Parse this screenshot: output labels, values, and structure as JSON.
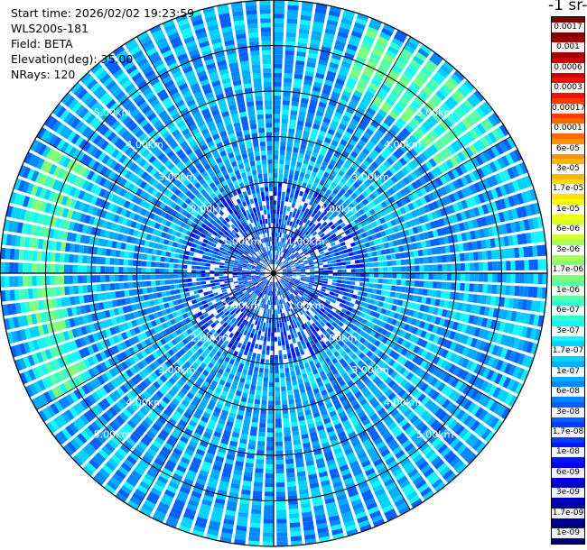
{
  "info": {
    "start_time": "Start time: 2026/02/02 19:23:59",
    "instrument": "WLS200s-181",
    "field": "Field: BETA",
    "elevation": "Elevation(deg): 35.00",
    "nrays": "NRays: 120"
  },
  "colorbar": {
    "title_fragment": "-1 sr-",
    "labels": [
      "0.0017",
      "0.001",
      "0.0006",
      "0.0003",
      "0.00017",
      "0.0001",
      "6e-05",
      "3e-05",
      "1.7e-05",
      "1e-05",
      "6e-06",
      "3e-06",
      "1.7e-06",
      "1e-06",
      "6e-07",
      "3e-07",
      "1.7e-07",
      "1e-07",
      "6e-08",
      "3e-08",
      "1.7e-08",
      "1e-08",
      "6e-09",
      "3e-09",
      "1.7e-09",
      "1e-09"
    ],
    "colors": [
      "#7f0000",
      "#a50000",
      "#cc0000",
      "#f01000",
      "#ff3a00",
      "#ff6a00",
      "#ff9200",
      "#ffb800",
      "#ffe000",
      "#f4ff10",
      "#d4ff30",
      "#a6ff56",
      "#80ff7a",
      "#58ffa4",
      "#32ffd0",
      "#12f6ff",
      "#00d2ff",
      "#00acff",
      "#0086ff",
      "#0060ff",
      "#003cff",
      "#0016ff",
      "#0000e8",
      "#0000c0",
      "#000098",
      "#000074"
    ]
  },
  "chart_data": {
    "type": "heatmap",
    "subtype": "ppi-polar",
    "field": "BETA",
    "n_rays": 120,
    "elevation_deg": 35.0,
    "range_rings_km": [
      1.0,
      2.0,
      3.0,
      4.0,
      5.0
    ],
    "ring_labels": [
      "1.00km",
      "2.00km",
      "3.00km",
      "4.00km",
      "5.00km"
    ],
    "azimuth_lines_deg": [
      0,
      30,
      60,
      90,
      120,
      150
    ],
    "max_range_km": 6.0,
    "color_scale": "log",
    "clim": [
      1e-09,
      0.0017
    ],
    "typical_values": {
      "near_range_km_0_to_2": 3e-08,
      "mid_range_km_2_to_6": 1e-07,
      "enhanced_arc_northeast": 6e-07,
      "enhanced_arc_west": 6e-07
    }
  }
}
